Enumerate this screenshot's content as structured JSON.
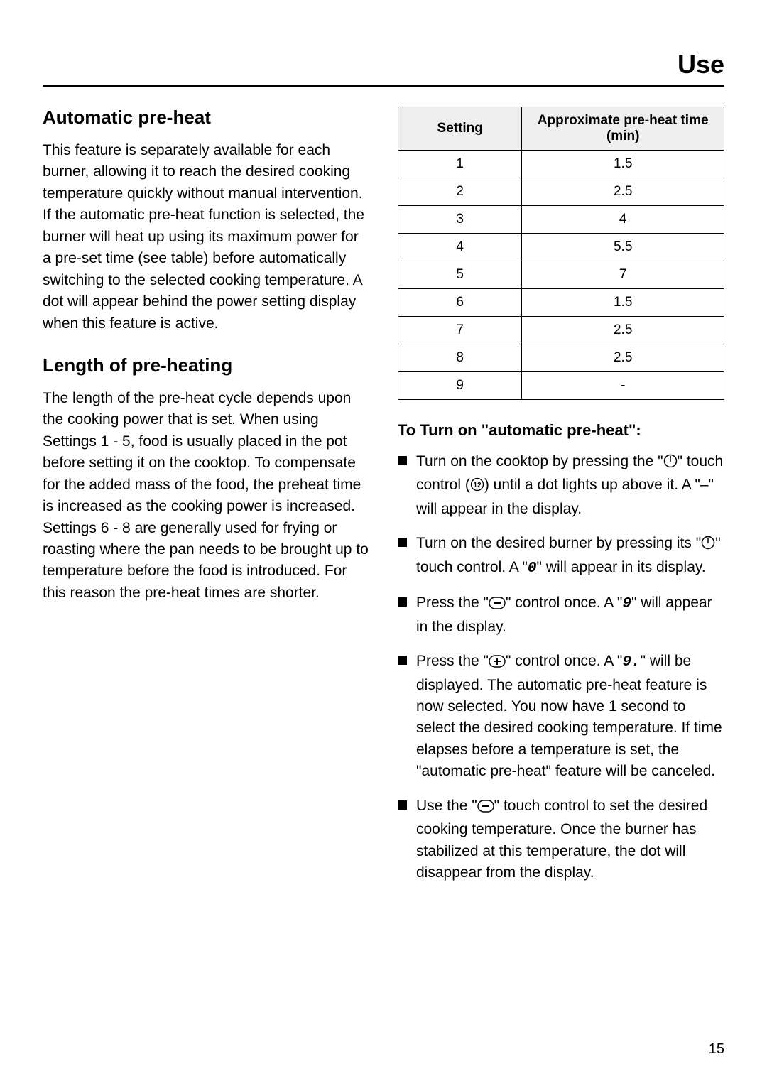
{
  "header": {
    "title": "Use"
  },
  "left": {
    "h2_auto": "Automatic pre-heat",
    "p_auto": "This feature is separately available for each burner, allowing it to reach the desired cooking temperature quickly without manual intervention. If the automatic pre-heat function is selected, the burner will heat up using its maximum power for a pre-set time (see table) before automatically switching to the selected cooking temperature. A dot will appear behind the power setting display when this feature is active.",
    "h2_length": "Length of pre-heating",
    "p_length": "The length of the pre-heat cycle depends upon the cooking power that is set. When using Settings 1 - 5, food is usually placed in the pot before setting it on the cooktop. To compensate for the added mass of the food, the preheat time is increased as the cooking power is increased. Settings 6 - 8 are generally used for frying or roasting where the pan needs to be brought up to temperature before the food is introduced. For this reason the pre-heat times are shorter."
  },
  "table": {
    "columns": [
      "Setting",
      "Approximate pre-heat time (min)"
    ],
    "rows": [
      [
        "1",
        "1.5"
      ],
      [
        "2",
        "2.5"
      ],
      [
        "3",
        "4"
      ],
      [
        "4",
        "5.5"
      ],
      [
        "5",
        "7"
      ],
      [
        "6",
        "1.5"
      ],
      [
        "7",
        "2.5"
      ],
      [
        "8",
        "2.5"
      ],
      [
        "9",
        "-"
      ]
    ],
    "header_bg": "#eeeeee",
    "border_color": "#000000"
  },
  "instructions": {
    "heading": "To Turn on \"automatic pre-heat\":",
    "items": [
      {
        "pre1": "Turn on the cooktop by pressing the \"",
        "icon1": "power",
        "mid1": "\" touch control (",
        "icon2": "circled12",
        "post1": ") until a dot lights up above it. A \"–\" will appear in the display."
      },
      {
        "pre1": "Turn on the desired burner by pressing its \"",
        "icon1": "power",
        "mid1": "\" touch control. A \"",
        "seg": "0",
        "post1": "\" will appear in its display."
      },
      {
        "pre1": "Press the \"",
        "icon1": "minus",
        "mid1": "\" control once. A \"",
        "seg": "9",
        "post1": "\" will appear in the display."
      },
      {
        "pre1": "Press the \"",
        "icon1": "plus",
        "mid1": "\" control once. A \"",
        "seg": "9.",
        "post1": "\" will be displayed. The automatic pre-heat feature is now selected. You now have 1 second to select the desired cooking temperature. If time elapses before a temperature is set, the \"automatic pre-heat\" feature will be canceled."
      },
      {
        "pre1": "Use the \"",
        "icon1": "minus",
        "mid1": "\" touch control to set the desired cooking temperature. Once the burner has stabilized at this temperature, the dot will disappear from the display.",
        "post1": ""
      }
    ]
  },
  "page_number": "15"
}
